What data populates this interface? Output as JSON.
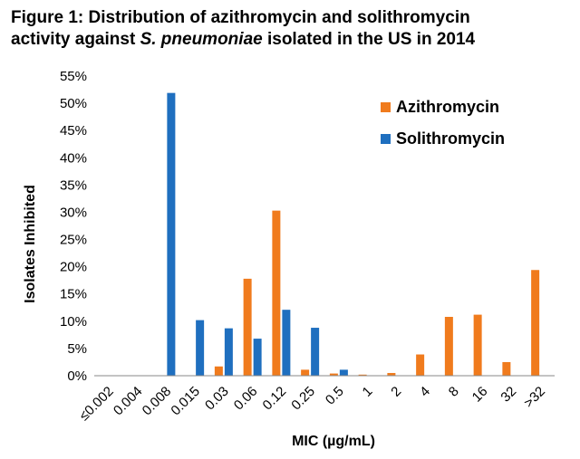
{
  "title": {
    "line1": "Figure 1: Distribution of azithromycin and solithromycin",
    "line2_pre": "activity against ",
    "line2_italic": "S. pneumoniae",
    "line2_post": " isolated in the US in 2014"
  },
  "chart_data": {
    "type": "bar",
    "title": "Figure 1: Distribution of azithromycin and solithromycin activity against S. pneumoniae isolated in the US in 2014",
    "xlabel": "MIC (µg/mL)",
    "ylabel": "Isolates Inhibited",
    "ylim": [
      0,
      55
    ],
    "yticks": [
      "0%",
      "5%",
      "10%",
      "15%",
      "20%",
      "25%",
      "30%",
      "35%",
      "40%",
      "45%",
      "50%",
      "55%"
    ],
    "grid": false,
    "legend_position": "top-right",
    "categories": [
      "≤0.002",
      "0.004",
      "0.008",
      "0.015",
      "0.03",
      "0.06",
      "0.12",
      "0.25",
      "0.5",
      "1",
      "2",
      "4",
      "8",
      "16",
      "32",
      ">32"
    ],
    "series": [
      {
        "name": "Azithromycin",
        "color": "#f07b1d",
        "values": [
          0,
          0,
          0,
          0,
          1.7,
          17.8,
          30.3,
          1.1,
          0.4,
          0.2,
          0.5,
          3.9,
          10.8,
          11.2,
          2.5,
          19.4
        ]
      },
      {
        "name": "Solithromycin",
        "color": "#1f6fbf",
        "values": [
          0,
          0,
          51.9,
          10.2,
          8.7,
          6.8,
          12.1,
          8.8,
          1.1,
          0,
          0,
          0,
          0,
          0,
          0,
          0
        ]
      }
    ]
  }
}
